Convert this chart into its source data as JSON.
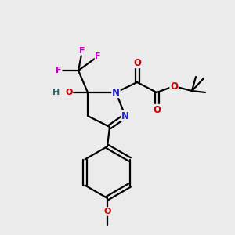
{
  "background_color": "#ebebeb",
  "figsize": [
    3.0,
    3.0
  ],
  "dpi": 100,
  "colors": {
    "C": "#000000",
    "N": "#2222cc",
    "O": "#cc0000",
    "F": "#cc00cc",
    "H": "#336666",
    "bond": "#000000"
  }
}
